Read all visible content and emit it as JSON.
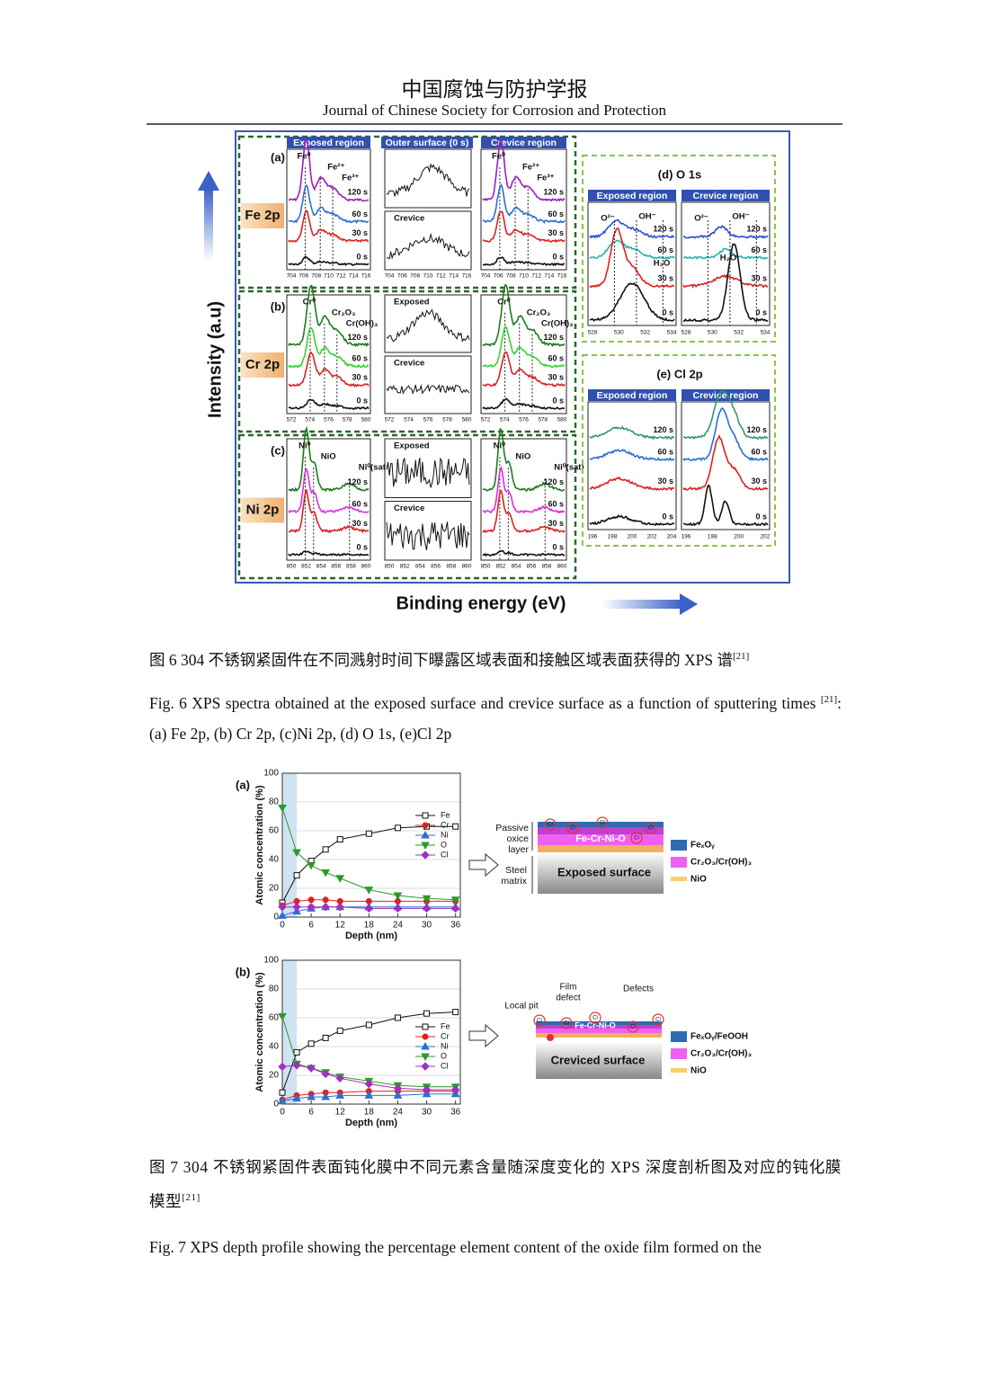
{
  "header": {
    "title_cn": "中国腐蚀与防护学报",
    "title_en": "Journal of Chinese Society for Corrosion and Protection"
  },
  "figure6": {
    "y_axis": "Intensity (a.u)",
    "x_axis": "Binding energy (eV)",
    "titles": [
      "Exposed region",
      "Outer surface (0 s)",
      "Crevice region"
    ],
    "times": [
      "120 s",
      "60 s",
      "30 s",
      "0 s"
    ],
    "rows": [
      {
        "label": "(a)",
        "element": "Fe 2p",
        "ticks": [
          704,
          706,
          708,
          710,
          712,
          714,
          716
        ],
        "peaks": [
          "Fe⁰",
          "Fe²⁺",
          "Fe³⁺"
        ],
        "middle_labels": [
          "Crevice"
        ],
        "colors": [
          "#9a1fc4",
          "#2a6fd6",
          "#e02020",
          "#111111"
        ]
      },
      {
        "label": "(b)",
        "element": "Cr 2p",
        "ticks": [
          572,
          574,
          576,
          578,
          580
        ],
        "peaks": [
          "Cr⁰",
          "Cr₂O₃",
          "Cr(OH)₃"
        ],
        "middle_labels": [
          "Exposed",
          "Crevice"
        ],
        "colors": [
          "#1f7a1f",
          "#33d433",
          "#e02020",
          "#111111"
        ]
      },
      {
        "label": "(c)",
        "element": "Ni 2p",
        "ticks": [
          850,
          852,
          854,
          856,
          858,
          860
        ],
        "peaks": [
          "Ni⁰",
          "NiO",
          "Ni⁰(sat)"
        ],
        "middle_labels": [
          "Exposed",
          "Crevice"
        ],
        "colors": [
          "#1f7a1f",
          "#e22ae2",
          "#e02020",
          "#111111"
        ]
      }
    ],
    "o1s": {
      "title": "(d)  O 1s",
      "regions": [
        "Exposed region",
        "Crevice region"
      ],
      "ticks": [
        528,
        530,
        532,
        534
      ],
      "peaks": [
        "O²⁻",
        "OH⁻",
        "H₂O"
      ],
      "colors": [
        "#2a50d6",
        "#22b4b4",
        "#e02020",
        "#111111"
      ]
    },
    "cl2p": {
      "title": "(e)  Cl 2p",
      "regions": [
        "Exposed region",
        "Crevice region"
      ],
      "ticks_exposed": [
        196,
        198,
        200,
        202,
        204
      ],
      "ticks_crevice": [
        196,
        198,
        200,
        202
      ],
      "colors": [
        "#2f9a6a",
        "#2a6fd6",
        "#e02020",
        "#111111"
      ]
    }
  },
  "caption6": {
    "cn": "图 6 304 不锈钢紧固件在不同溅射时间下曝露区域表面和接触区域表面获得的 XPS 谱",
    "cn_ref": "[21]",
    "en": "Fig. 6 XPS spectra obtained at the exposed surface and crevice surface as a function of sputtering times",
    "en_ref": "[21]",
    "en_rest": ": (a) Fe 2p, (b) Cr 2p, (c)Ni 2p, (d) O 1s, (e)Cl 2p"
  },
  "figure7": {
    "charts": [
      {
        "type": "line",
        "label": "(a)",
        "ylabel": "Atomic concentration (%)",
        "xlabel": "Depth (nm)",
        "xlim": [
          0,
          37
        ],
        "xticks": [
          0,
          6,
          12,
          18,
          24,
          30,
          36
        ],
        "ylim": [
          0,
          100
        ],
        "yticks": [
          0,
          20,
          40,
          60,
          80,
          100
        ],
        "grid": true,
        "highlight": [
          0,
          3
        ],
        "x": [
          0,
          3,
          6,
          9,
          12,
          18,
          24,
          30,
          36
        ],
        "series": [
          {
            "name": "Fe",
            "color": "#111111",
            "marker": "square",
            "values": [
              10,
              29,
              39,
              47,
              54,
              58,
              62,
              63,
              63
            ]
          },
          {
            "name": "Cr",
            "color": "#e02020",
            "marker": "circle",
            "values": [
              8,
              11,
              12,
              12,
              11,
              11,
              11,
              11,
              11
            ]
          },
          {
            "name": "Ni",
            "color": "#2a6fd6",
            "marker": "triangle",
            "values": [
              1,
              4,
              6,
              7,
              7,
              7,
              7,
              7,
              7
            ]
          },
          {
            "name": "O",
            "color": "#2a9a2a",
            "marker": "down",
            "values": [
              76,
              45,
              36,
              31,
              27,
              19,
              15,
              13,
              12
            ]
          },
          {
            "name": "Cl",
            "color": "#a030c0",
            "marker": "diamond",
            "values": [
              7,
              7,
              7,
              7,
              7,
              6,
              6,
              6,
              6
            ]
          }
        ]
      },
      {
        "type": "line",
        "label": "(b)",
        "ylabel": "Atomic concentration (%)",
        "xlabel": "Depth (nm)",
        "xlim": [
          0,
          37
        ],
        "xticks": [
          0,
          6,
          12,
          18,
          24,
          30,
          36
        ],
        "ylim": [
          0,
          100
        ],
        "yticks": [
          0,
          20,
          40,
          60,
          80,
          100
        ],
        "grid": true,
        "highlight": [
          0,
          3
        ],
        "x": [
          0,
          3,
          6,
          9,
          12,
          18,
          24,
          30,
          36
        ],
        "series": [
          {
            "name": "Fe",
            "color": "#111111",
            "marker": "square",
            "values": [
              8,
              36,
              42,
              46,
              51,
              55,
              60,
              63,
              64
            ]
          },
          {
            "name": "Cr",
            "color": "#e02020",
            "marker": "circle",
            "values": [
              3,
              6,
              7,
              8,
              8,
              9,
              9,
              9,
              9
            ]
          },
          {
            "name": "Ni",
            "color": "#2a6fd6",
            "marker": "triangle",
            "values": [
              2,
              4,
              5,
              5,
              6,
              6,
              6,
              7,
              7
            ]
          },
          {
            "name": "O",
            "color": "#2a9a2a",
            "marker": "down",
            "values": [
              61,
              28,
              25,
              22,
              19,
              16,
              13,
              12,
              12
            ]
          },
          {
            "name": "Cl",
            "color": "#a030c0",
            "marker": "diamond",
            "values": [
              26,
              27,
              25,
              21,
              18,
              14,
              11,
              10,
              10
            ]
          }
        ]
      }
    ],
    "schematic_a": {
      "passive": [
        "Passive",
        "oxice",
        "layer"
      ],
      "steel": [
        "Steel",
        "matrix"
      ],
      "film": "Fe-Cr-Ni-O",
      "surface": "Exposed surface",
      "legend": [
        "FeₓOᵧ",
        "Cr₂O₃/Cr(OH)₃",
        "NiO"
      ]
    },
    "schematic_b": {
      "pit": "Local pit",
      "defect": [
        "Film",
        "defect"
      ],
      "defects": "Defects",
      "film": "Fe-Cr-Ni-O",
      "surface": "Creviced surface",
      "legend": [
        "FeₓOᵧ/FeOOH",
        "Cr₂O₃/Cr(OH)₃",
        "NiO"
      ]
    },
    "cl_mark": "Cl"
  },
  "caption7": {
    "cn": "图 7 304 不锈钢紧固件表面钝化膜中不同元素含量随深度变化的 XPS 深度剖析图及对应的钝化膜模型",
    "cn_ref": "[21]",
    "en": "Fig. 7 XPS depth profile showing the percentage element content of the oxide film formed on the"
  }
}
